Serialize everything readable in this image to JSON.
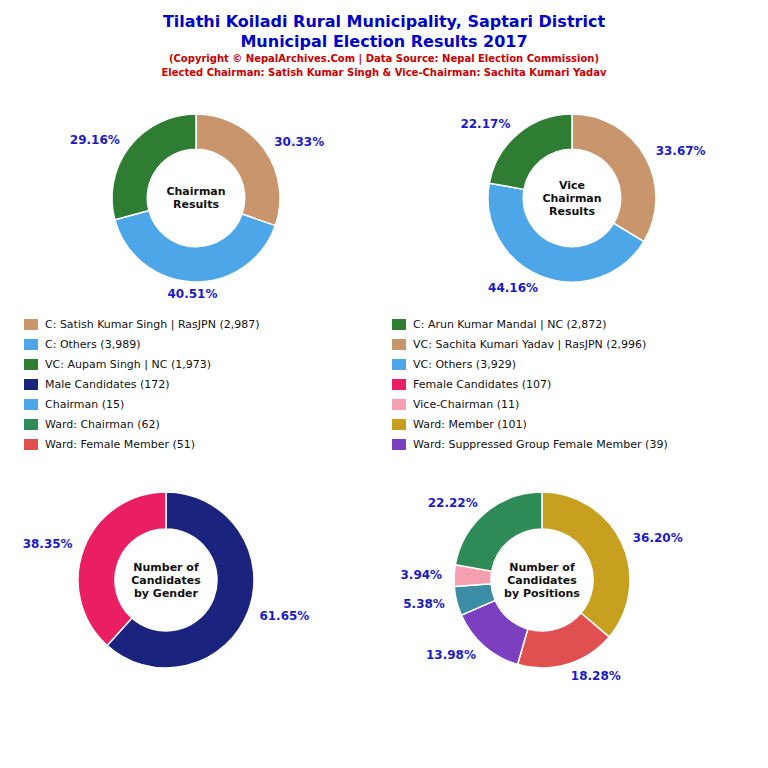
{
  "title": [
    "Tilathi Koiladi Rural Municipality, Saptari District",
    "Municipal Election Results 2017"
  ],
  "subtitle": [
    "(Copyright © NepalArchives.Com | Data Source: Nepal Election Commission)",
    "Elected Chairman: Satish Kumar Singh & Vice-Chairman: Sachita Kumari Yadav"
  ],
  "title_color": "#0000cc",
  "subtitle_color": "#cc0000",
  "chart_data": [
    {
      "type": "pie",
      "title": "Chairman\nResults",
      "values": [
        30.33,
        40.51,
        29.16
      ],
      "value_labels": [
        "30.33%",
        "40.51%",
        "29.16%"
      ],
      "colors": [
        "#c8956c",
        "#4da6e8",
        "#2e7d32"
      ],
      "data_labels": true
    },
    {
      "type": "pie",
      "title": "Vice\nChairman\nResults",
      "values": [
        33.67,
        44.16,
        22.17
      ],
      "value_labels": [
        "33.67%",
        "44.16%",
        "22.17%"
      ],
      "colors": [
        "#c8956c",
        "#4da6e8",
        "#2e7d32"
      ],
      "data_labels": true
    },
    {
      "type": "pie",
      "title": "Number of\nCandidates\nby Gender",
      "values": [
        61.65,
        38.35
      ],
      "value_labels": [
        "61.65%",
        "38.35%"
      ],
      "colors": [
        "#1a237e",
        "#e91e63"
      ],
      "data_labels": true
    },
    {
      "type": "pie",
      "title": "Number of\nCandidates\nby Positions",
      "values": [
        36.2,
        18.28,
        13.98,
        5.38,
        3.94,
        22.22
      ],
      "value_labels": [
        "36.20%",
        "18.28%",
        "13.98%",
        "5.38%",
        "3.94%",
        "22.22%"
      ],
      "colors": [
        "#c8a020",
        "#e05050",
        "#7b3fbf",
        "#3b8ea5",
        "#f4a0b0",
        "#2e8b57"
      ],
      "data_labels": true
    }
  ],
  "legend_items": [
    [
      {
        "name": "C: Satish Kumar Singh | RasJPN (2,987)",
        "color": "#c8956c"
      },
      {
        "name": "C: Others (3,989)",
        "color": "#4da6e8"
      },
      {
        "name": "VC: Aupam Singh | NC (1,973)",
        "color": "#2e7d32"
      },
      {
        "name": "Male Candidates (172)",
        "color": "#1a237e"
      },
      {
        "name": "Chairman (15)",
        "color": "#4da6e8"
      },
      {
        "name": "Ward: Chairman (62)",
        "color": "#2e8b57"
      },
      {
        "name": "Ward: Female Member (51)",
        "color": "#e05050"
      }
    ],
    [
      {
        "name": "C: Arun Kumar Mandal | NC (2,872)",
        "color": "#2e7d32"
      },
      {
        "name": "VC: Sachita Kumari Yadav | RasJPN (2,996)",
        "color": "#c8956c"
      },
      {
        "name": "VC: Others (3,929)",
        "color": "#4da6e8"
      },
      {
        "name": "Female Candidates (107)",
        "color": "#e91e63"
      },
      {
        "name": "Vice-Chairman (11)",
        "color": "#f4a0b0"
      },
      {
        "name": "Ward: Member (101)",
        "color": "#c8a020"
      },
      {
        "name": "Ward: Suppressed Group Female Member (39)",
        "color": "#7b3fbf"
      }
    ]
  ]
}
